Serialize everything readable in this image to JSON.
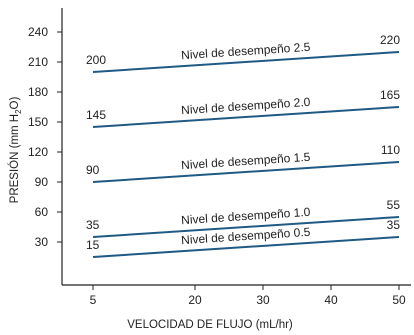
{
  "chart_data": {
    "type": "line",
    "xlabel": "VELOCIDAD DE FLUJO (mL/hr)",
    "ylabel_parts": {
      "main": "PRESIÓN (mm H",
      "sub": "2",
      "end": "O)"
    },
    "x_ticks": [
      5,
      20,
      30,
      40,
      50
    ],
    "y_ticks": [
      30,
      60,
      90,
      120,
      150,
      180,
      210,
      240
    ],
    "x_range": [
      5,
      50
    ],
    "y_range": [
      0,
      250
    ],
    "colors": {
      "line": "#1f5a85",
      "axis": "#222222"
    },
    "series": [
      {
        "name": "Nivel de desempeño 2.5",
        "x": [
          5,
          50
        ],
        "y": [
          200,
          220
        ],
        "start_label": "200",
        "end_label": "220"
      },
      {
        "name": "Nivel de desempeño 2.0",
        "x": [
          5,
          50
        ],
        "y": [
          145,
          165
        ],
        "start_label": "145",
        "end_label": "165"
      },
      {
        "name": "Nivel de desempeño 1.5",
        "x": [
          5,
          50
        ],
        "y": [
          90,
          110
        ],
        "start_label": "90",
        "end_label": "110"
      },
      {
        "name": "Nivel de desempeño 1.0",
        "x": [
          5,
          50
        ],
        "y": [
          35,
          55
        ],
        "start_label": "35",
        "end_label": "55"
      },
      {
        "name": "Nivel de desempeño 0.5",
        "x": [
          5,
          50
        ],
        "y": [
          15,
          35
        ],
        "start_label": "15",
        "end_label": "35"
      }
    ]
  }
}
